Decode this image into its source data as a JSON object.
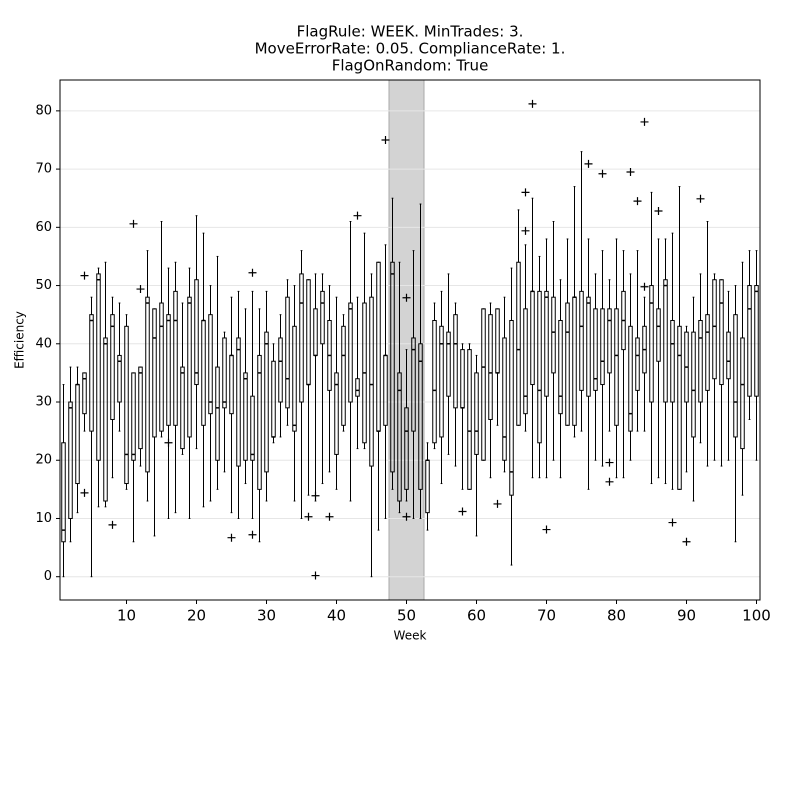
{
  "chart_data": {
    "type": "boxplot",
    "title": [
      "FlagRule: WEEK. MinTrades: 3.",
      "MoveErrorRate: 0.05. ComplianceRate: 1.",
      "FlagOnRandom: True"
    ],
    "x_label": "Week",
    "y_label": "Efficiency",
    "xlim": [
      0.5,
      100.5
    ],
    "ylim": [
      -4,
      85.3
    ],
    "xticks": [
      10,
      20,
      30,
      40,
      50,
      60,
      70,
      80,
      90,
      100
    ],
    "yticks": [
      0,
      10,
      20,
      30,
      40,
      50,
      60,
      70,
      80
    ],
    "grid": true,
    "color": "#000000",
    "shade": [
      47.5,
      52.5
    ],
    "shade_color": "#d3d3d3",
    "whislo": [
      0,
      6,
      11,
      25,
      0,
      12,
      12,
      17,
      25,
      15,
      6,
      19,
      13,
      7,
      24,
      10,
      11,
      21,
      10,
      22,
      12,
      13,
      15,
      18,
      11,
      10,
      16,
      10,
      6,
      13,
      23,
      24,
      26,
      13,
      10,
      14,
      13,
      16,
      18,
      15,
      25,
      13,
      22,
      22,
      0,
      8,
      10,
      15,
      11,
      13,
      10,
      10,
      8,
      22,
      16,
      21,
      19,
      15,
      15,
      7,
      20,
      17,
      26,
      18,
      2,
      26,
      25,
      17,
      17,
      17,
      20,
      17,
      26,
      24,
      25,
      15,
      20,
      19,
      25,
      17,
      17,
      20,
      25,
      25,
      16,
      17,
      16,
      15,
      15,
      18,
      13,
      23,
      19,
      20,
      19,
      20,
      6,
      14,
      27,
      20
    ],
    "q1": [
      6,
      10,
      16,
      28,
      25,
      20,
      13,
      27,
      30,
      16,
      20,
      22,
      18,
      24,
      25,
      26,
      26,
      22,
      24,
      33,
      26,
      28,
      20,
      29,
      28,
      19,
      20,
      20,
      15,
      18,
      24,
      30,
      29,
      25,
      30,
      33,
      38,
      40,
      32,
      21,
      26,
      30,
      31,
      23,
      19,
      25,
      26,
      18,
      13,
      15,
      25,
      15,
      11,
      23,
      24,
      31,
      29,
      29,
      15,
      21,
      20,
      27,
      35,
      20,
      14,
      26,
      28,
      33,
      23,
      31,
      35,
      28,
      26,
      26,
      32,
      31,
      32,
      33,
      35,
      26,
      39,
      25,
      32,
      35,
      30,
      37,
      30,
      30,
      15,
      30,
      24,
      30,
      32,
      34,
      33,
      34,
      24,
      22,
      31,
      31
    ],
    "med": [
      8,
      29,
      33,
      34,
      44,
      51,
      40,
      43,
      37,
      21,
      21,
      35,
      47,
      41,
      43,
      44,
      44,
      35,
      47,
      35,
      44,
      30,
      29,
      30,
      38,
      39,
      34,
      21,
      35,
      40,
      24,
      37,
      34,
      26,
      47,
      33,
      38,
      47,
      38,
      33,
      38,
      46,
      32,
      35,
      33,
      25,
      38,
      52,
      32,
      25,
      39,
      37,
      20,
      32,
      40,
      40,
      40,
      29,
      25,
      25,
      36,
      35,
      35,
      24,
      18,
      39,
      31,
      49,
      32,
      48,
      42,
      31,
      42,
      48,
      43,
      47,
      34,
      37,
      44,
      38,
      44,
      28,
      38,
      39,
      47,
      43,
      50,
      40,
      38,
      36,
      32,
      41,
      42,
      43,
      47,
      37,
      30,
      33,
      46,
      49
    ],
    "q3": [
      23,
      30,
      33,
      35,
      45,
      52,
      41,
      45,
      38,
      43,
      35,
      36,
      48,
      46,
      47,
      45,
      49,
      36,
      48,
      51,
      44,
      45,
      36,
      41,
      38,
      41,
      35,
      31,
      38,
      42,
      37,
      41,
      48,
      43,
      52,
      51,
      46,
      49,
      44,
      35,
      43,
      47,
      34,
      47,
      48,
      54,
      38,
      54,
      35,
      29,
      41,
      40,
      20,
      44,
      43,
      42,
      45,
      39,
      39,
      35,
      46,
      45,
      46,
      41,
      44,
      54,
      46,
      49,
      49,
      49,
      48,
      44,
      47,
      48,
      49,
      48,
      46,
      46,
      46,
      46,
      49,
      43,
      41,
      43,
      50,
      46,
      51,
      44,
      43,
      42,
      42,
      44,
      45,
      51,
      51,
      42,
      45,
      41,
      50,
      50
    ],
    "whishi": [
      33,
      36,
      36,
      35,
      48,
      53,
      54,
      48,
      47,
      45,
      35,
      36,
      56,
      46,
      61,
      53,
      54,
      47,
      53,
      62,
      59,
      50,
      55,
      42,
      48,
      49,
      46,
      49,
      46,
      49,
      40,
      45,
      51,
      50,
      56,
      51,
      52,
      52,
      50,
      48,
      45,
      61,
      48,
      59,
      52,
      54,
      57,
      65,
      54,
      39,
      56,
      64,
      23,
      47,
      49,
      52,
      47,
      40,
      40,
      38,
      46,
      47,
      46,
      48,
      53,
      63,
      57,
      65,
      55,
      58,
      61,
      51,
      58,
      67,
      73,
      58,
      52,
      56,
      51,
      58,
      56,
      52,
      56,
      48,
      66,
      58,
      58,
      59,
      67,
      43,
      48,
      52,
      61,
      52,
      51,
      49,
      50,
      54,
      56,
      56
    ],
    "fliers": {
      "x": [
        4,
        4,
        8,
        11,
        12,
        16,
        25,
        28,
        28,
        36,
        37,
        37,
        39,
        43,
        47,
        50,
        50,
        58,
        63,
        67,
        67,
        68,
        70,
        76,
        78,
        79,
        79,
        82,
        83,
        84,
        84,
        86,
        88,
        90,
        92
      ],
      "values": [
        51.7,
        14.4,
        8.9,
        60.6,
        49.4,
        23,
        6.7,
        52.2,
        7.2,
        10.3,
        13.9,
        0.2,
        10.3,
        62,
        75,
        47.9,
        10.3,
        11.2,
        12.5,
        66,
        59.4,
        81.2,
        8.1,
        70.9,
        69.2,
        19.6,
        16.3,
        69.5,
        64.5,
        78.1,
        49.8,
        62.8,
        9.3,
        6,
        64.9
      ]
    }
  }
}
